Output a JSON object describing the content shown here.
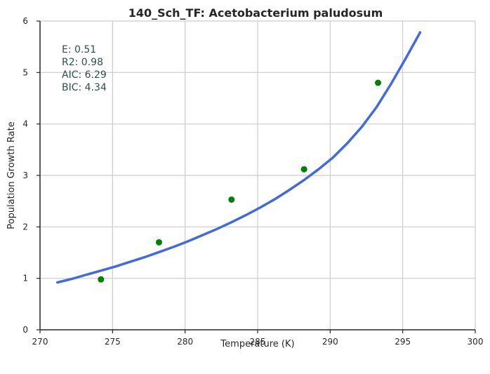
{
  "chart_data": {
    "type": "scatter",
    "title": "140_Sch_TF: Acetobacterium paludosum",
    "xlabel": "Temperature (K)",
    "ylabel": "Population Growth Rate",
    "xlim": [
      270,
      300
    ],
    "ylim": [
      0,
      6
    ],
    "xticks": [
      270,
      275,
      280,
      285,
      290,
      295,
      300
    ],
    "yticks": [
      0,
      1,
      2,
      3,
      4,
      5,
      6
    ],
    "grid": true,
    "points": {
      "x": [
        274.2,
        278.2,
        283.2,
        288.2,
        293.3
      ],
      "y": [
        0.98,
        1.7,
        2.53,
        3.12,
        4.8
      ],
      "color": "#008000"
    },
    "fit_curve": {
      "x": [
        271.2,
        272.2,
        273.2,
        274.2,
        275.2,
        276.2,
        277.2,
        278.2,
        279.2,
        280.2,
        281.2,
        282.2,
        283.2,
        284.2,
        285.2,
        286.2,
        287.2,
        288.2,
        289.2,
        290.2,
        291.2,
        292.2,
        293.2,
        294.2,
        295.2,
        296.2
      ],
      "y": [
        0.92,
        0.99,
        1.07,
        1.15,
        1.23,
        1.32,
        1.41,
        1.51,
        1.61,
        1.72,
        1.84,
        1.96,
        2.09,
        2.23,
        2.38,
        2.54,
        2.72,
        2.91,
        3.12,
        3.35,
        3.63,
        3.95,
        4.33,
        4.78,
        5.27,
        5.78
      ],
      "color": "#4169e1"
    },
    "annotations": [
      "E:  0.51",
      "R2:  0.98",
      "AIC: 6.29",
      "BIC: 4.34"
    ]
  }
}
